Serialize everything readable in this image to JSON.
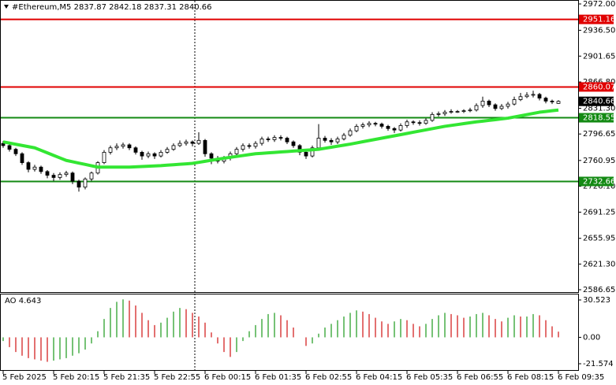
{
  "chart_data": [
    {
      "type": "candlestick",
      "title": "#Ethereum,M5  2837.87 2842.18 2837.31 2840.66",
      "categories": [
        "5 Feb 2025",
        null,
        null,
        null,
        null,
        null,
        null,
        null,
        "5 Feb 20:15",
        null,
        null,
        null,
        null,
        null,
        null,
        null,
        "5 Feb 21:35",
        null,
        null,
        null,
        null,
        null,
        null,
        null,
        "5 Feb 22:55",
        null,
        null,
        null,
        null,
        null,
        null,
        null,
        "6 Feb 00:15",
        null,
        null,
        null,
        null,
        null,
        null,
        null,
        "6 Feb 01:35",
        null,
        null,
        null,
        null,
        null,
        null,
        null,
        "6 Feb 02:55",
        null,
        null,
        null,
        null,
        null,
        null,
        null,
        "6 Feb 04:15",
        null,
        null,
        null,
        null,
        null,
        null,
        null,
        "6 Feb 05:35",
        null,
        null,
        null,
        null,
        null,
        null,
        null,
        "6 Feb 06:55",
        null,
        null,
        null,
        null,
        null,
        null,
        null,
        "6 Feb 08:15",
        null,
        null,
        null,
        null,
        null,
        null,
        null,
        "6 Feb 09:35"
      ],
      "open": [
        2784,
        2781,
        2776,
        2770,
        2758,
        2749,
        2752,
        2746,
        2741,
        2738,
        2742,
        2744,
        2733,
        2725,
        2736,
        2744,
        2758,
        2772,
        2778,
        2780,
        2782,
        2778,
        2772,
        2767,
        2770,
        2767,
        2772,
        2776,
        2781,
        2784,
        2786,
        2784,
        2788,
        2770,
        2764,
        2760,
        2764,
        2770,
        2776,
        2781,
        2780,
        2784,
        2790,
        2789,
        2792,
        2791,
        2786,
        2781,
        2772,
        2767,
        2778,
        2791,
        2788,
        2786,
        2790,
        2795,
        2801,
        2807,
        2809,
        2811,
        2810,
        2807,
        2804,
        2802,
        2808,
        2813,
        2812,
        2811,
        2815,
        2823,
        2824,
        2826,
        2827,
        2827,
        2828,
        2829,
        2835,
        2841,
        2836,
        2831,
        2834,
        2837,
        2843,
        2847,
        2849,
        2850,
        2845,
        2841,
        2837.87
      ],
      "high": [
        2787,
        2783,
        2778,
        2772,
        2760,
        2755,
        2754,
        2748,
        2744,
        2745,
        2747,
        2746,
        2735,
        2738,
        2746,
        2760,
        2775,
        2781,
        2784,
        2785,
        2784,
        2780,
        2774,
        2773,
        2772,
        2775,
        2779,
        2784,
        2788,
        2789,
        2788,
        2799,
        2790,
        2772,
        2767,
        2767,
        2773,
        2779,
        2784,
        2784,
        2787,
        2793,
        2793,
        2795,
        2795,
        2793,
        2788,
        2783,
        2774,
        2781,
        2810,
        2794,
        2791,
        2793,
        2798,
        2804,
        2810,
        2812,
        2814,
        2813,
        2812,
        2809,
        2806,
        2811,
        2816,
        2815,
        2815,
        2818,
        2826,
        2827,
        2829,
        2830,
        2829,
        2830,
        2832,
        2838,
        2847,
        2843,
        2838,
        2837,
        2840,
        2847,
        2852,
        2853,
        2855,
        2852,
        2847,
        2843,
        2842.18
      ],
      "low": [
        2778,
        2773,
        2767,
        2755,
        2745,
        2746,
        2743,
        2737,
        2733,
        2735,
        2739,
        2729,
        2719,
        2722,
        2733,
        2742,
        2756,
        2769,
        2775,
        2777,
        2775,
        2769,
        2762,
        2764,
        2763,
        2765,
        2770,
        2774,
        2779,
        2781,
        2780,
        2782,
        2766,
        2756,
        2757,
        2757,
        2761,
        2767,
        2773,
        2777,
        2777,
        2781,
        2786,
        2786,
        2788,
        2783,
        2778,
        2768,
        2763,
        2765,
        2776,
        2785,
        2782,
        2783,
        2788,
        2793,
        2799,
        2804,
        2806,
        2807,
        2804,
        2801,
        2798,
        2800,
        2805,
        2809,
        2808,
        2809,
        2813,
        2820,
        2821,
        2824,
        2825,
        2825,
        2826,
        2827,
        2832,
        2833,
        2828,
        2829,
        2831,
        2835,
        2841,
        2845,
        2846,
        2842,
        2838,
        2837,
        2837.31
      ],
      "close": [
        2781,
        2776,
        2770,
        2758,
        2749,
        2752,
        2746,
        2741,
        2738,
        2742,
        2744,
        2733,
        2725,
        2736,
        2744,
        2758,
        2772,
        2778,
        2780,
        2782,
        2778,
        2772,
        2767,
        2770,
        2767,
        2772,
        2776,
        2781,
        2784,
        2786,
        2784,
        2788,
        2770,
        2764,
        2760,
        2764,
        2770,
        2776,
        2781,
        2780,
        2784,
        2790,
        2789,
        2792,
        2791,
        2786,
        2781,
        2772,
        2767,
        2778,
        2791,
        2788,
        2786,
        2790,
        2795,
        2801,
        2807,
        2809,
        2811,
        2810,
        2807,
        2804,
        2802,
        2808,
        2813,
        2812,
        2811,
        2815,
        2823,
        2824,
        2826,
        2827,
        2827,
        2828,
        2829,
        2835,
        2841,
        2836,
        2831,
        2834,
        2837,
        2843,
        2847,
        2849,
        2850,
        2845,
        2841,
        2840,
        2840.66
      ],
      "up_color": "#ffffff",
      "down_color": "#000000",
      "wick_color": "#000000",
      "ma_color": "#33e633",
      "ma_values": [
        2786,
        2784.4,
        2782.8,
        2781.2,
        2779.6,
        2778,
        2774.6,
        2771.2,
        2767.8,
        2764.4,
        2761,
        2759.2,
        2757.4,
        2755.6,
        2753.8,
        2752,
        2752,
        2752,
        2752,
        2752,
        2752,
        2752.4,
        2752.8,
        2753.2,
        2753.6,
        2754,
        2754.6,
        2755.2,
        2755.8,
        2756.4,
        2757,
        2758.4,
        2759.8,
        2761.2,
        2762.6,
        2764,
        2765.2,
        2766.4,
        2767.6,
        2768.8,
        2770,
        2770.6,
        2771.2,
        2771.8,
        2772.4,
        2773,
        2773.6,
        2774.2,
        2774.8,
        2775.4,
        2776,
        2777.4,
        2778.8,
        2780.2,
        2781.6,
        2783,
        2784.6,
        2786.2,
        2787.8,
        2789.4,
        2791,
        2792.6,
        2794.2,
        2795.8,
        2797.4,
        2799,
        2800.6,
        2802.2,
        2803.8,
        2805.4,
        2807,
        2808.2,
        2809.4,
        2810.6,
        2811.8,
        2813,
        2814,
        2815,
        2816,
        2817,
        2818,
        2819.6,
        2821.2,
        2822.8,
        2824.4,
        2826,
        2827,
        2828,
        2829
      ],
      "levels": [
        {
          "value": 2951.16,
          "color": "#e00000"
        },
        {
          "value": 2860.07,
          "color": "#e00000"
        },
        {
          "value": 2818.55,
          "color": "#138a13"
        },
        {
          "value": 2732.66,
          "color": "#138a13"
        }
      ],
      "current_price": 2840.66,
      "ylim": [
        2586.65,
        2972
      ],
      "yticks": [
        {
          "value": 2972,
          "label": "2972.00"
        },
        {
          "value": 2936.5,
          "label": "2936.50"
        },
        2901.65,
        {
          "value": 2866.8,
          "label": "2866.80"
        },
        {
          "value": 2831.3,
          "label": "2831.30"
        },
        2796.65,
        2760.95,
        {
          "value": 2726.1,
          "label": "2726.10"
        },
        2691.25,
        2655.95,
        {
          "value": 2621.3,
          "label": "2621.30"
        },
        2586.65
      ]
    },
    {
      "type": "histogram",
      "title": "AO 4.643",
      "values": [
        -3,
        -8,
        -12,
        -15,
        -17,
        -18,
        -19,
        -20,
        -19,
        -18,
        -17,
        -15,
        -13,
        -10,
        -5,
        5,
        15,
        24,
        29,
        31,
        30,
        26,
        20,
        14,
        10,
        12,
        16,
        21,
        24,
        23,
        20,
        17,
        12,
        4,
        -5,
        -12,
        -16,
        -12,
        -3,
        5,
        10,
        15,
        19,
        20,
        18,
        14,
        8,
        0,
        -7,
        -5,
        3,
        8,
        11,
        14,
        17,
        20,
        22,
        21,
        19,
        16,
        13,
        11,
        13,
        15,
        14,
        11,
        9,
        11,
        15,
        18,
        20,
        19,
        18,
        16,
        17,
        19,
        20,
        18,
        15,
        13,
        16,
        18,
        17,
        17,
        19,
        18,
        14,
        9,
        4.643
      ],
      "up_color": "#1a9a1a",
      "down_color": "#d01010",
      "ylim": [
        -21.574,
        30.523
      ],
      "yticks": [
        30.523,
        {
          "value": 0,
          "label": "0.00"
        },
        -21.574
      ]
    }
  ]
}
